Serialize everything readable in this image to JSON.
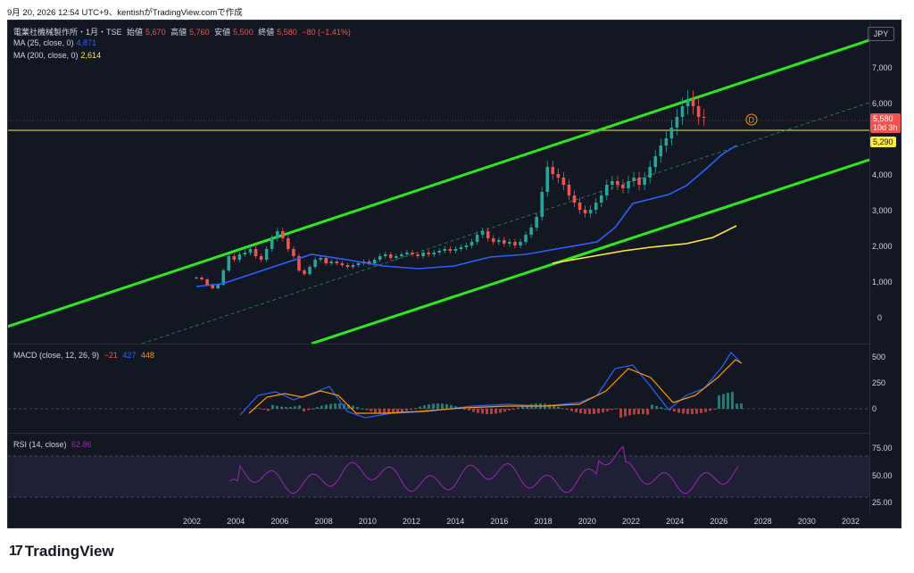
{
  "header": {
    "timestamp": "9月 20, 2026 12:54 UTC+9、kentishがTradingView.comで作成"
  },
  "legend": {
    "symbol": "電業社機械製作所・1月・TSE",
    "open_label": "始値",
    "open": "5,670",
    "high_label": "高値",
    "high": "5,760",
    "low_label": "安値",
    "low": "5,500",
    "close_label": "終値",
    "close": "5,580",
    "change": "−80 (−1.41%)",
    "ma25_label": "MA (25, close, 0)",
    "ma25_value": "4,871",
    "ma200_label": "MA (200, close, 0)",
    "ma200_value": "2,614"
  },
  "currency": "JPY",
  "price_axis": [
    "7,000",
    "6,000",
    "5,000",
    "4,000",
    "3,000",
    "2,000",
    "1,000",
    "0"
  ],
  "price_tags": {
    "last": "5,580",
    "countdown": "10d 3h",
    "ma": "5,290"
  },
  "macd": {
    "label": "MACD (close, 12, 26, 9)",
    "v1": "−21",
    "v2": "427",
    "v3": "448",
    "axis": [
      "500",
      "250",
      "0"
    ]
  },
  "rsi": {
    "label": "RSI (14, close)",
    "value": "62.86",
    "axis": [
      "75.00",
      "50.00",
      "25.00"
    ]
  },
  "time_axis": [
    "2002",
    "2004",
    "2006",
    "2008",
    "2010",
    "2012",
    "2014",
    "2016",
    "2018",
    "2020",
    "2022",
    "2024",
    "2026",
    "2028",
    "2030",
    "2032"
  ],
  "event_marker": "D",
  "brand": "TradingView",
  "colors": {
    "bg": "#131722",
    "up": "#26a69a",
    "down": "#ef5350",
    "channel": "#2ee81f",
    "ma25": "#2962ff",
    "ma200": "#ffeb3b",
    "macd_signal": "#ff9800",
    "rsi": "#9c27b0"
  }
}
